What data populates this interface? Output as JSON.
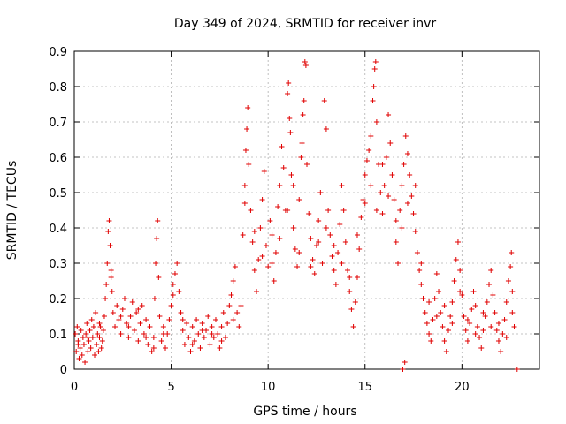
{
  "chart_data": {
    "type": "scatter",
    "title": "Day 349 of 2024, SRMTID for receiver invr",
    "xlabel": "GPS time / hours",
    "ylabel": "SRMTID / TECUs",
    "xlim": [
      0,
      24
    ],
    "ylim": [
      0,
      0.9
    ],
    "xticks": [
      0,
      5,
      10,
      15,
      20
    ],
    "yticks": [
      0,
      0.1,
      0.2,
      0.3,
      0.4,
      0.5,
      0.6,
      0.7,
      0.8,
      0.9
    ],
    "xtick_labels": [
      "0",
      "5",
      "10",
      "15",
      "20"
    ],
    "ytick_labels": [
      "0",
      "0.1",
      "0.2",
      "0.3",
      "0.4",
      "0.5",
      "0.6",
      "0.7",
      "0.8",
      "0.9"
    ],
    "grid": true,
    "marker": "+",
    "color": "#e00000",
    "series": [
      {
        "name": "SRMTID",
        "points": [
          [
            0.05,
            0.1
          ],
          [
            0.1,
            0.05
          ],
          [
            0.15,
            0.12
          ],
          [
            0.2,
            0.08
          ],
          [
            0.25,
            0.03
          ],
          [
            0.3,
            0.06
          ],
          [
            0.35,
            0.11
          ],
          [
            0.4,
            0.04
          ],
          [
            0.45,
            0.09
          ],
          [
            0.5,
            0.07
          ],
          [
            0.55,
            0.02
          ],
          [
            0.6,
            0.1
          ],
          [
            0.65,
            0.13
          ],
          [
            0.7,
            0.05
          ],
          [
            0.75,
            0.08
          ],
          [
            0.8,
            0.11
          ],
          [
            0.85,
            0.06
          ],
          [
            0.9,
            0.14
          ],
          [
            0.95,
            0.09
          ],
          [
            1.0,
            0.12
          ],
          [
            1.05,
            0.04
          ],
          [
            1.1,
            0.16
          ],
          [
            1.15,
            0.07
          ],
          [
            1.2,
            0.1
          ],
          [
            1.25,
            0.05
          ],
          [
            1.3,
            0.09
          ],
          [
            1.35,
            0.12
          ],
          [
            1.4,
            0.06
          ],
          [
            1.45,
            0.08
          ],
          [
            1.5,
            0.11
          ],
          [
            1.55,
            0.15
          ],
          [
            1.6,
            0.2
          ],
          [
            1.65,
            0.24
          ],
          [
            1.7,
            0.3
          ],
          [
            1.75,
            0.39
          ],
          [
            1.8,
            0.42
          ],
          [
            1.85,
            0.35
          ],
          [
            1.9,
            0.28
          ],
          [
            1.95,
            0.22
          ],
          [
            2.0,
            0.16
          ],
          [
            2.1,
            0.12
          ],
          [
            2.2,
            0.18
          ],
          [
            2.3,
            0.14
          ],
          [
            2.4,
            0.1
          ],
          [
            2.5,
            0.17
          ],
          [
            2.6,
            0.2
          ],
          [
            2.7,
            0.13
          ],
          [
            2.8,
            0.09
          ],
          [
            2.9,
            0.15
          ],
          [
            3.0,
            0.19
          ],
          [
            3.1,
            0.11
          ],
          [
            3.2,
            0.16
          ],
          [
            3.3,
            0.08
          ],
          [
            3.4,
            0.13
          ],
          [
            3.5,
            0.18
          ],
          [
            3.6,
            0.1
          ],
          [
            3.7,
            0.14
          ],
          [
            3.8,
            0.07
          ],
          [
            3.9,
            0.12
          ],
          [
            4.0,
            0.05
          ],
          [
            4.1,
            0.09
          ],
          [
            4.15,
            0.2
          ],
          [
            4.2,
            0.3
          ],
          [
            4.25,
            0.37
          ],
          [
            4.3,
            0.42
          ],
          [
            4.35,
            0.26
          ],
          [
            4.4,
            0.15
          ],
          [
            4.5,
            0.08
          ],
          [
            4.6,
            0.12
          ],
          [
            4.7,
            0.06
          ],
          [
            4.8,
            0.1
          ],
          [
            4.9,
            0.14
          ],
          [
            5.0,
            0.18
          ],
          [
            5.1,
            0.21
          ],
          [
            5.2,
            0.27
          ],
          [
            5.3,
            0.3
          ],
          [
            5.4,
            0.22
          ],
          [
            5.5,
            0.16
          ],
          [
            5.6,
            0.11
          ],
          [
            5.7,
            0.07
          ],
          [
            5.8,
            0.13
          ],
          [
            5.9,
            0.09
          ],
          [
            6.0,
            0.05
          ],
          [
            6.1,
            0.12
          ],
          [
            6.2,
            0.08
          ],
          [
            6.3,
            0.14
          ],
          [
            6.4,
            0.1
          ],
          [
            6.5,
            0.06
          ],
          [
            6.6,
            0.13
          ],
          [
            6.7,
            0.09
          ],
          [
            6.8,
            0.11
          ],
          [
            6.9,
            0.15
          ],
          [
            7.0,
            0.07
          ],
          [
            7.1,
            0.12
          ],
          [
            7.2,
            0.09
          ],
          [
            7.3,
            0.14
          ],
          [
            7.4,
            0.1
          ],
          [
            7.5,
            0.06
          ],
          [
            7.6,
            0.12
          ],
          [
            7.7,
            0.16
          ],
          [
            7.8,
            0.09
          ],
          [
            7.9,
            0.13
          ],
          [
            8.0,
            0.18
          ],
          [
            8.1,
            0.21
          ],
          [
            8.2,
            0.25
          ],
          [
            8.3,
            0.29
          ],
          [
            8.4,
            0.16
          ],
          [
            8.5,
            0.12
          ],
          [
            8.6,
            0.18
          ],
          [
            8.7,
            0.38
          ],
          [
            8.8,
            0.52
          ],
          [
            8.85,
            0.62
          ],
          [
            8.9,
            0.68
          ],
          [
            8.95,
            0.74
          ],
          [
            9.0,
            0.58
          ],
          [
            9.1,
            0.45
          ],
          [
            9.2,
            0.36
          ],
          [
            9.3,
            0.28
          ],
          [
            9.4,
            0.22
          ],
          [
            9.5,
            0.31
          ],
          [
            9.6,
            0.4
          ],
          [
            9.7,
            0.48
          ],
          [
            9.8,
            0.56
          ],
          [
            9.9,
            0.35
          ],
          [
            10.0,
            0.29
          ],
          [
            10.1,
            0.42
          ],
          [
            10.2,
            0.38
          ],
          [
            10.3,
            0.25
          ],
          [
            10.4,
            0.33
          ],
          [
            10.5,
            0.46
          ],
          [
            10.6,
            0.52
          ],
          [
            10.7,
            0.63
          ],
          [
            10.8,
            0.57
          ],
          [
            10.9,
            0.45
          ],
          [
            11.0,
            0.78
          ],
          [
            11.05,
            0.81
          ],
          [
            11.1,
            0.71
          ],
          [
            11.15,
            0.67
          ],
          [
            11.2,
            0.55
          ],
          [
            11.3,
            0.4
          ],
          [
            11.4,
            0.34
          ],
          [
            11.5,
            0.29
          ],
          [
            11.6,
            0.48
          ],
          [
            11.7,
            0.6
          ],
          [
            11.75,
            0.64
          ],
          [
            11.8,
            0.72
          ],
          [
            11.85,
            0.76
          ],
          [
            11.9,
            0.87
          ],
          [
            11.95,
            0.86
          ],
          [
            12.0,
            0.58
          ],
          [
            12.1,
            0.44
          ],
          [
            12.2,
            0.37
          ],
          [
            12.3,
            0.31
          ],
          [
            12.4,
            0.27
          ],
          [
            12.5,
            0.35
          ],
          [
            12.6,
            0.42
          ],
          [
            12.7,
            0.5
          ],
          [
            12.8,
            0.3
          ],
          [
            12.9,
            0.76
          ],
          [
            13.0,
            0.68
          ],
          [
            13.1,
            0.45
          ],
          [
            13.2,
            0.38
          ],
          [
            13.3,
            0.32
          ],
          [
            13.4,
            0.28
          ],
          [
            13.5,
            0.24
          ],
          [
            13.6,
            0.33
          ],
          [
            13.7,
            0.41
          ],
          [
            13.8,
            0.52
          ],
          [
            13.9,
            0.45
          ],
          [
            14.0,
            0.36
          ],
          [
            14.1,
            0.28
          ],
          [
            14.2,
            0.22
          ],
          [
            14.3,
            0.17
          ],
          [
            14.4,
            0.12
          ],
          [
            14.5,
            0.19
          ],
          [
            14.6,
            0.26
          ],
          [
            14.7,
            0.34
          ],
          [
            14.8,
            0.43
          ],
          [
            14.9,
            0.48
          ],
          [
            15.0,
            0.55
          ],
          [
            15.1,
            0.59
          ],
          [
            15.2,
            0.62
          ],
          [
            15.3,
            0.66
          ],
          [
            15.4,
            0.76
          ],
          [
            15.45,
            0.8
          ],
          [
            15.5,
            0.85
          ],
          [
            15.55,
            0.87
          ],
          [
            15.6,
            0.7
          ],
          [
            15.7,
            0.58
          ],
          [
            15.8,
            0.5
          ],
          [
            15.9,
            0.44
          ],
          [
            16.0,
            0.52
          ],
          [
            16.1,
            0.6
          ],
          [
            16.2,
            0.72
          ],
          [
            16.3,
            0.64
          ],
          [
            16.4,
            0.55
          ],
          [
            16.5,
            0.48
          ],
          [
            16.6,
            0.36
          ],
          [
            16.7,
            0.3
          ],
          [
            16.8,
            0.45
          ],
          [
            16.9,
            0.52
          ],
          [
            17.0,
            0.58
          ],
          [
            17.1,
            0.66
          ],
          [
            17.2,
            0.61
          ],
          [
            17.3,
            0.55
          ],
          [
            17.4,
            0.49
          ],
          [
            17.5,
            0.44
          ],
          [
            17.6,
            0.39
          ],
          [
            17.7,
            0.33
          ],
          [
            17.8,
            0.28
          ],
          [
            17.9,
            0.24
          ],
          [
            18.0,
            0.2
          ],
          [
            18.1,
            0.16
          ],
          [
            18.2,
            0.13
          ],
          [
            18.3,
            0.1
          ],
          [
            18.4,
            0.08
          ],
          [
            18.5,
            0.14
          ],
          [
            18.6,
            0.2
          ],
          [
            18.7,
            0.27
          ],
          [
            18.8,
            0.22
          ],
          [
            18.9,
            0.16
          ],
          [
            19.0,
            0.12
          ],
          [
            19.1,
            0.08
          ],
          [
            19.2,
            0.05
          ],
          [
            19.3,
            0.11
          ],
          [
            19.4,
            0.15
          ],
          [
            19.5,
            0.19
          ],
          [
            19.6,
            0.25
          ],
          [
            19.7,
            0.31
          ],
          [
            19.8,
            0.36
          ],
          [
            19.9,
            0.28
          ],
          [
            20.0,
            0.21
          ],
          [
            20.1,
            0.15
          ],
          [
            20.2,
            0.11
          ],
          [
            20.3,
            0.08
          ],
          [
            20.4,
            0.13
          ],
          [
            20.5,
            0.17
          ],
          [
            20.6,
            0.22
          ],
          [
            20.7,
            0.18
          ],
          [
            20.8,
            0.12
          ],
          [
            20.9,
            0.09
          ],
          [
            21.0,
            0.06
          ],
          [
            21.1,
            0.11
          ],
          [
            21.2,
            0.15
          ],
          [
            21.3,
            0.19
          ],
          [
            21.4,
            0.24
          ],
          [
            21.5,
            0.28
          ],
          [
            21.6,
            0.21
          ],
          [
            21.7,
            0.16
          ],
          [
            21.8,
            0.11
          ],
          [
            21.9,
            0.08
          ],
          [
            22.0,
            0.05
          ],
          [
            22.1,
            0.1
          ],
          [
            22.2,
            0.14
          ],
          [
            22.3,
            0.19
          ],
          [
            22.4,
            0.25
          ],
          [
            22.5,
            0.29
          ],
          [
            22.55,
            0.33
          ],
          [
            22.6,
            0.22
          ],
          [
            22.7,
            0.12
          ],
          [
            0.2,
            0.07
          ],
          [
            0.7,
            0.09
          ],
          [
            1.3,
            0.13
          ],
          [
            1.9,
            0.26
          ],
          [
            2.4,
            0.15
          ],
          [
            2.8,
            0.12
          ],
          [
            3.3,
            0.17
          ],
          [
            3.7,
            0.09
          ],
          [
            4.1,
            0.06
          ],
          [
            4.6,
            0.1
          ],
          [
            5.1,
            0.24
          ],
          [
            5.6,
            0.14
          ],
          [
            6.1,
            0.07
          ],
          [
            6.6,
            0.11
          ],
          [
            7.1,
            0.1
          ],
          [
            7.6,
            0.08
          ],
          [
            8.2,
            0.14
          ],
          [
            8.8,
            0.47
          ],
          [
            9.3,
            0.39
          ],
          [
            9.7,
            0.32
          ],
          [
            10.2,
            0.3
          ],
          [
            10.6,
            0.37
          ],
          [
            11.0,
            0.45
          ],
          [
            11.3,
            0.52
          ],
          [
            11.6,
            0.33
          ],
          [
            12.2,
            0.29
          ],
          [
            12.6,
            0.36
          ],
          [
            13.0,
            0.4
          ],
          [
            13.4,
            0.35
          ],
          [
            13.8,
            0.3
          ],
          [
            14.2,
            0.26
          ],
          [
            14.6,
            0.38
          ],
          [
            15.0,
            0.47
          ],
          [
            15.3,
            0.52
          ],
          [
            15.6,
            0.45
          ],
          [
            15.9,
            0.58
          ],
          [
            16.2,
            0.49
          ],
          [
            16.6,
            0.42
          ],
          [
            16.9,
            0.4
          ],
          [
            17.2,
            0.47
          ],
          [
            17.6,
            0.52
          ],
          [
            17.9,
            0.3
          ],
          [
            18.3,
            0.19
          ],
          [
            18.7,
            0.15
          ],
          [
            19.1,
            0.18
          ],
          [
            19.5,
            0.13
          ],
          [
            19.9,
            0.22
          ],
          [
            20.3,
            0.14
          ],
          [
            20.7,
            0.1
          ],
          [
            21.1,
            0.16
          ],
          [
            21.5,
            0.12
          ],
          [
            21.9,
            0.13
          ],
          [
            22.3,
            0.09
          ],
          [
            22.6,
            0.16
          ],
          [
            17.05,
            0.02
          ],
          [
            22.85,
            0.0
          ],
          [
            16.95,
            0.0
          ]
        ]
      }
    ]
  }
}
